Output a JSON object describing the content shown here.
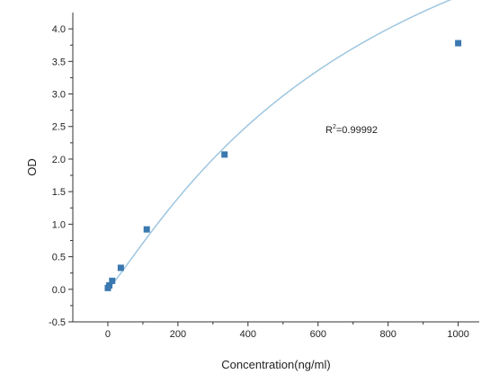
{
  "chart_data": {
    "type": "scatter",
    "title": "",
    "xlabel": "Concentration(ng/ml)",
    "ylabel": "OD",
    "xlim": [
      -100,
      1060
    ],
    "ylim": [
      -0.5,
      4.25
    ],
    "xticks": [
      0,
      200,
      400,
      600,
      800,
      1000
    ],
    "yticks": [
      -0.5,
      0.0,
      0.5,
      1.0,
      1.5,
      2.0,
      2.5,
      3.0,
      3.5,
      4.0
    ],
    "xtick_labels": [
      "0",
      "200",
      "400",
      "600",
      "800",
      "1000"
    ],
    "ytick_labels": [
      "-0.5",
      "0.0",
      "0.5",
      "1.0",
      "1.5",
      "2.0",
      "2.5",
      "3.0",
      "3.5",
      "4.0"
    ],
    "grid": false,
    "points": [
      {
        "x": 0,
        "y": 0.02
      },
      {
        "x": 4.1,
        "y": 0.06
      },
      {
        "x": 12.3,
        "y": 0.13
      },
      {
        "x": 37,
        "y": 0.33
      },
      {
        "x": 111,
        "y": 0.92
      },
      {
        "x": 333,
        "y": 2.07
      },
      {
        "x": 1000,
        "y": 3.78
      }
    ],
    "fit_curve": {
      "type": "4PL",
      "a": 0.0,
      "b": 1.12,
      "c": 800,
      "d": 8.0
    },
    "annotation": {
      "base": "R",
      "superscript": "2",
      "value": "=0.99992"
    },
    "colors": {
      "point": "#3a78b0",
      "curve": "#9ec6e0",
      "axis": "#333333"
    }
  }
}
